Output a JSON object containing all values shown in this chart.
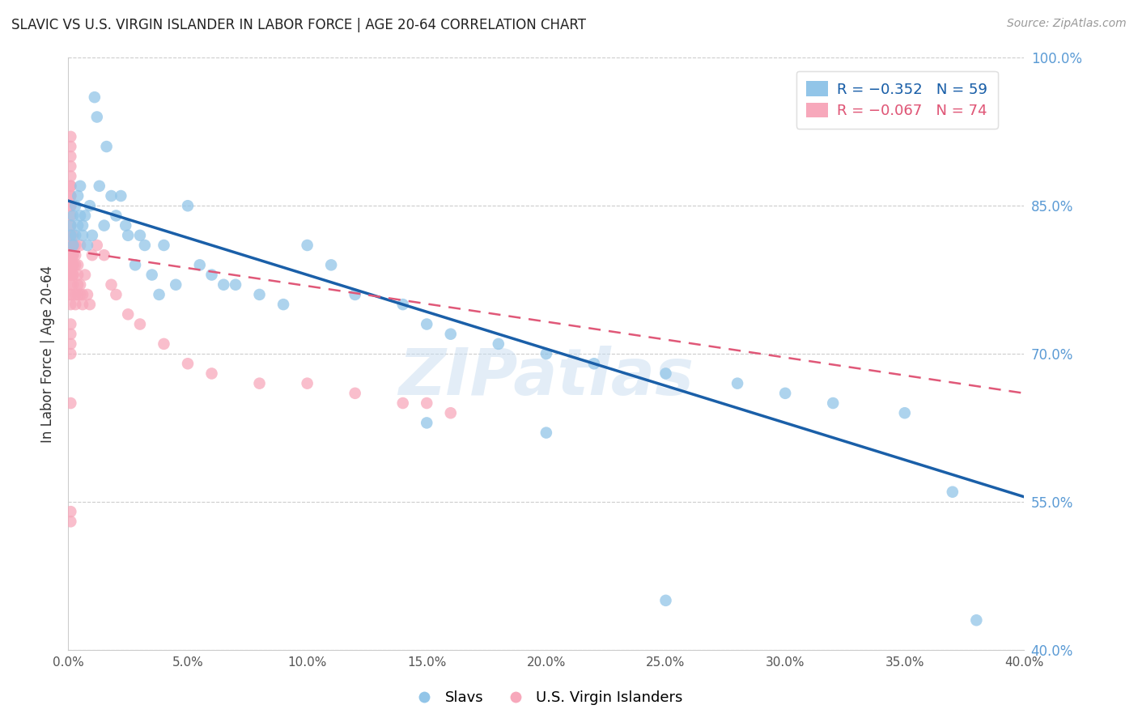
{
  "title": "SLAVIC VS U.S. VIRGIN ISLANDER IN LABOR FORCE | AGE 20-64 CORRELATION CHART",
  "source": "Source: ZipAtlas.com",
  "ylabel": "In Labor Force | Age 20-64",
  "xlim": [
    0.0,
    0.4
  ],
  "ylim": [
    0.4,
    1.0
  ],
  "xticks": [
    0.0,
    0.05,
    0.1,
    0.15,
    0.2,
    0.25,
    0.3,
    0.35,
    0.4
  ],
  "yticks": [
    0.4,
    0.55,
    0.7,
    0.85,
    1.0
  ],
  "ytick_labels": [
    "40.0%",
    "55.0%",
    "70.0%",
    "85.0%",
    "100.0%"
  ],
  "xtick_labels": [
    "0.0%",
    "5.0%",
    "10.0%",
    "15.0%",
    "20.0%",
    "25.0%",
    "30.0%",
    "35.0%",
    "40.0%"
  ],
  "right_yaxis_color": "#5b9bd5",
  "legend_r_blue": "R = −0.352",
  "legend_n_blue": "N = 59",
  "legend_r_pink": "R = −0.067",
  "legend_n_pink": "N = 74",
  "label_slavs": "Slavs",
  "label_vi": "U.S. Virgin Islanders",
  "blue_color": "#92c5e8",
  "pink_color": "#f7a8bb",
  "blue_line_color": "#1a5fa8",
  "pink_line_color": "#e05878",
  "watermark": "ZIPatlas",
  "slavs_x": [
    0.001,
    0.001,
    0.002,
    0.002,
    0.003,
    0.003,
    0.004,
    0.004,
    0.005,
    0.005,
    0.006,
    0.006,
    0.007,
    0.008,
    0.009,
    0.01,
    0.011,
    0.012,
    0.013,
    0.015,
    0.016,
    0.018,
    0.02,
    0.022,
    0.024,
    0.025,
    0.028,
    0.03,
    0.032,
    0.035,
    0.038,
    0.04,
    0.045,
    0.05,
    0.055,
    0.06,
    0.065,
    0.07,
    0.08,
    0.09,
    0.1,
    0.11,
    0.12,
    0.14,
    0.15,
    0.16,
    0.18,
    0.2,
    0.22,
    0.25,
    0.28,
    0.3,
    0.32,
    0.35,
    0.37,
    0.38,
    0.15,
    0.2,
    0.25
  ],
  "slavs_y": [
    0.83,
    0.82,
    0.84,
    0.81,
    0.85,
    0.82,
    0.83,
    0.86,
    0.84,
    0.87,
    0.82,
    0.83,
    0.84,
    0.81,
    0.85,
    0.82,
    0.96,
    0.94,
    0.87,
    0.83,
    0.91,
    0.86,
    0.84,
    0.86,
    0.83,
    0.82,
    0.79,
    0.82,
    0.81,
    0.78,
    0.76,
    0.81,
    0.77,
    0.85,
    0.79,
    0.78,
    0.77,
    0.77,
    0.76,
    0.75,
    0.81,
    0.79,
    0.76,
    0.75,
    0.73,
    0.72,
    0.71,
    0.7,
    0.69,
    0.68,
    0.67,
    0.66,
    0.65,
    0.64,
    0.56,
    0.43,
    0.63,
    0.62,
    0.45
  ],
  "vi_x": [
    0.001,
    0.001,
    0.001,
    0.001,
    0.001,
    0.001,
    0.001,
    0.001,
    0.001,
    0.001,
    0.001,
    0.001,
    0.001,
    0.001,
    0.001,
    0.001,
    0.001,
    0.001,
    0.001,
    0.001,
    0.002,
    0.002,
    0.002,
    0.002,
    0.002,
    0.002,
    0.002,
    0.002,
    0.002,
    0.002,
    0.003,
    0.003,
    0.003,
    0.003,
    0.003,
    0.004,
    0.004,
    0.004,
    0.004,
    0.005,
    0.005,
    0.005,
    0.006,
    0.006,
    0.007,
    0.008,
    0.009,
    0.01,
    0.012,
    0.015,
    0.018,
    0.02,
    0.025,
    0.03,
    0.04,
    0.05,
    0.06,
    0.08,
    0.1,
    0.12,
    0.14,
    0.16,
    0.001,
    0.001,
    0.001,
    0.001,
    0.001,
    0.001,
    0.001,
    0.001,
    0.001,
    0.15,
    0.001,
    0.001
  ],
  "vi_y": [
    0.87,
    0.86,
    0.85,
    0.84,
    0.83,
    0.82,
    0.81,
    0.8,
    0.79,
    0.78,
    0.86,
    0.87,
    0.88,
    0.85,
    0.89,
    0.9,
    0.91,
    0.92,
    0.8,
    0.78,
    0.82,
    0.81,
    0.8,
    0.79,
    0.78,
    0.77,
    0.81,
    0.8,
    0.79,
    0.78,
    0.8,
    0.79,
    0.76,
    0.81,
    0.75,
    0.79,
    0.78,
    0.77,
    0.76,
    0.77,
    0.81,
    0.76,
    0.76,
    0.75,
    0.78,
    0.76,
    0.75,
    0.8,
    0.81,
    0.8,
    0.77,
    0.76,
    0.74,
    0.73,
    0.71,
    0.69,
    0.68,
    0.67,
    0.67,
    0.66,
    0.65,
    0.64,
    0.76,
    0.75,
    0.73,
    0.72,
    0.71,
    0.7,
    0.76,
    0.77,
    0.65,
    0.65,
    0.54,
    0.53
  ]
}
